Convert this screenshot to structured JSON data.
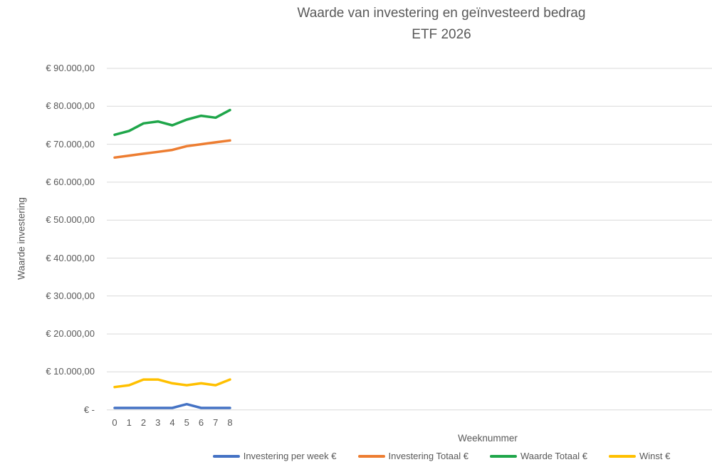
{
  "title": {
    "line1": "Waarde van investering en geïnvesteerd bedrag",
    "line2": "ETF 2026"
  },
  "y_axis": {
    "title": "Waarde investering",
    "ticks": [
      {
        "value": 90000,
        "label": "€ 90.000,00"
      },
      {
        "value": 80000,
        "label": "€ 80.000,00"
      },
      {
        "value": 70000,
        "label": "€ 70.000,00"
      },
      {
        "value": 60000,
        "label": "€ 60.000,00"
      },
      {
        "value": 50000,
        "label": "€ 50.000,00"
      },
      {
        "value": 40000,
        "label": "€ 40.000,00"
      },
      {
        "value": 30000,
        "label": "€ 30.000,00"
      },
      {
        "value": 20000,
        "label": "€ 20.000,00"
      },
      {
        "value": 10000,
        "label": "€ 10.000,00"
      },
      {
        "value": 0,
        "label": "€ -"
      }
    ]
  },
  "x_axis": {
    "title": "Weeknummer",
    "tick_labels": [
      "0",
      "1",
      "2",
      "3",
      "4",
      "5",
      "6",
      "7",
      "8"
    ]
  },
  "legend": [
    {
      "label": "Investering per week €",
      "color": "#4472C4"
    },
    {
      "label": "Investering Totaal €",
      "color": "#ED7D31"
    },
    {
      "label": "Waarde Totaal €",
      "color": "#1FA64A"
    },
    {
      "label": "Winst €",
      "color": "#FFC000"
    }
  ],
  "colors": {
    "text": "#595959",
    "gridline": "#D9D9D9",
    "series_blue": "#4472C4",
    "series_orange": "#ED7D31",
    "series_green": "#1FA64A",
    "series_yellow": "#FFC000"
  },
  "chart_data": {
    "type": "line",
    "title": "Waarde van investering en geïnvesteerd bedrag ETF 2026",
    "xlabel": "Weeknummer",
    "ylabel": "Waarde investering",
    "x": [
      0,
      1,
      2,
      3,
      4,
      5,
      6,
      7,
      8
    ],
    "series": [
      {
        "name": "Investering per week €",
        "color": "#4472C4",
        "values": [
          500,
          500,
          500,
          500,
          500,
          1500,
          500,
          500,
          500
        ]
      },
      {
        "name": "Investering Totaal €",
        "color": "#ED7D31",
        "values": [
          66500,
          67000,
          67500,
          68000,
          68500,
          69500,
          70000,
          70500,
          71000
        ]
      },
      {
        "name": "Waarde Totaal €",
        "color": "#1FA64A",
        "values": [
          72500,
          73500,
          75500,
          76000,
          75000,
          76500,
          77500,
          77000,
          79000
        ]
      },
      {
        "name": "Winst €",
        "color": "#FFC000",
        "values": [
          6000,
          6500,
          8000,
          8000,
          7000,
          6500,
          7000,
          6500,
          8000
        ]
      }
    ],
    "ylim": [
      0,
      90000
    ],
    "y_tick_step": 10000,
    "grid": "horizontal-only",
    "legend_position": "bottom"
  }
}
